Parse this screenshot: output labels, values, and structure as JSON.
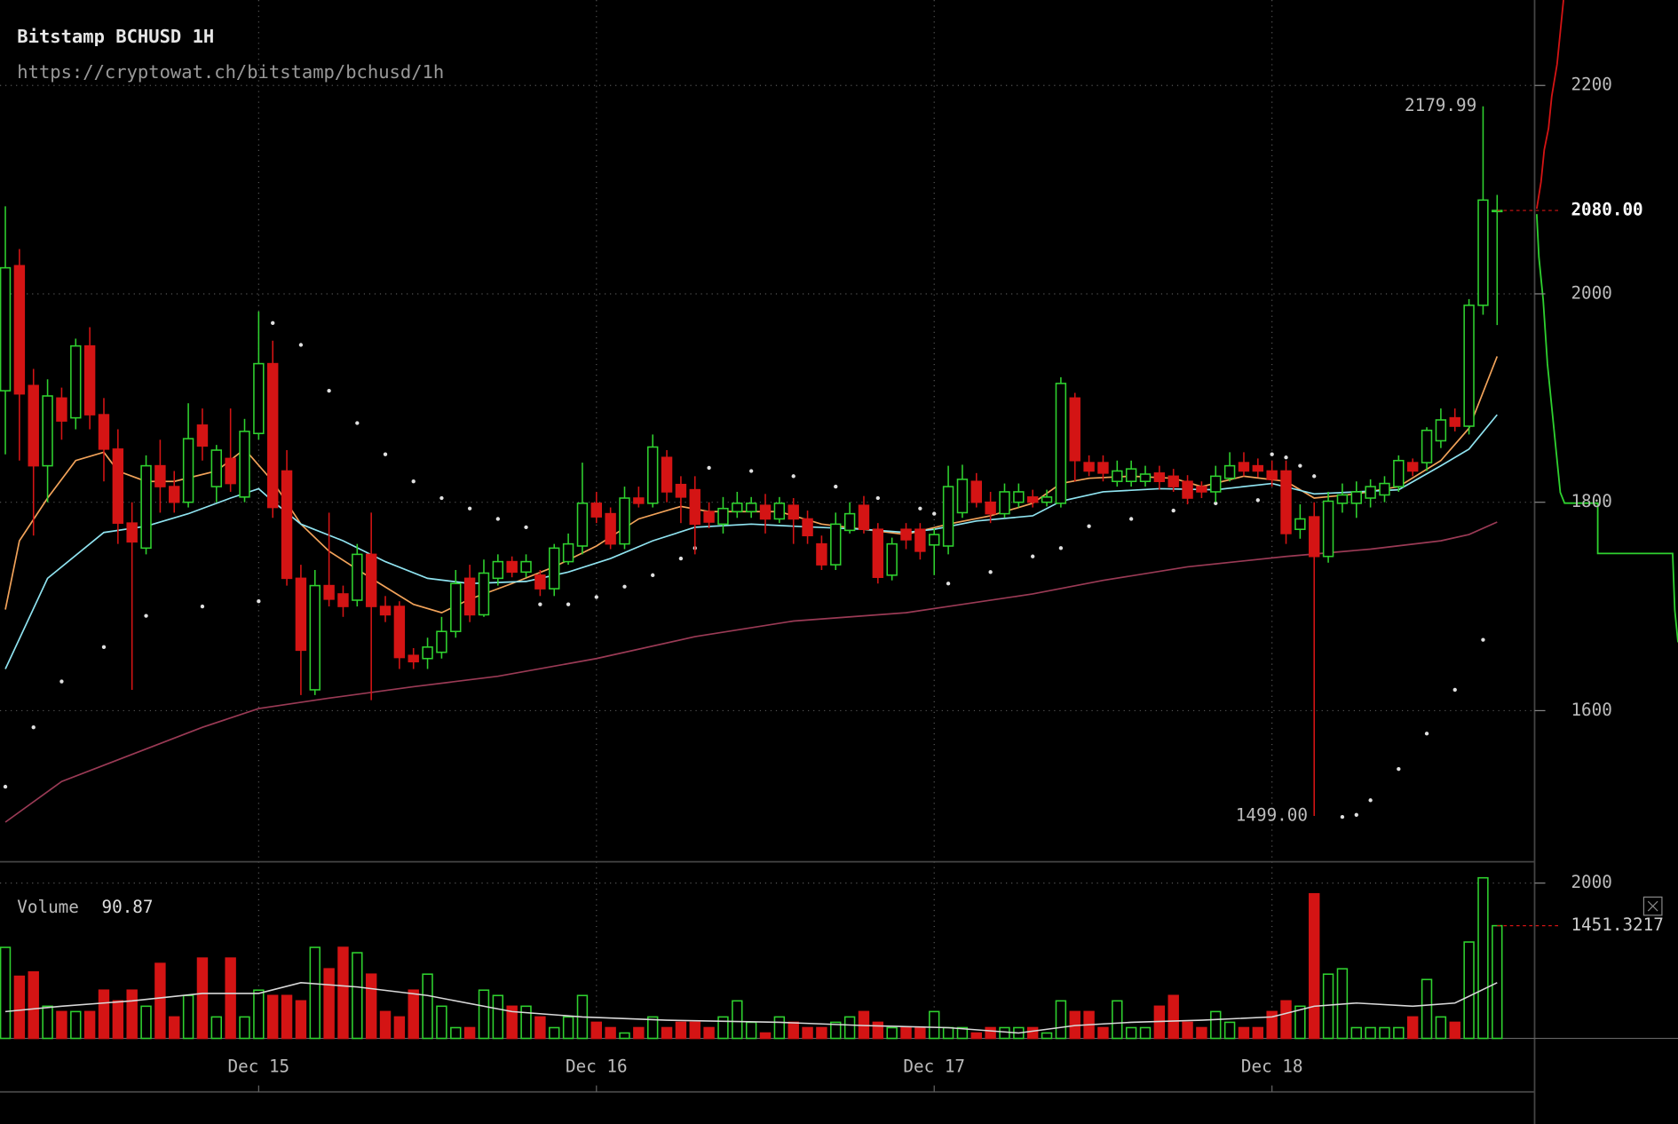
{
  "chart_data": {
    "type": "candlestick",
    "title": "Bitstamp BCHUSD 1H",
    "subtitle": "https://cryptowat.ch/bitstamp/bchusd/1h",
    "categories": [
      null,
      null,
      null,
      null,
      null,
      null,
      null,
      null,
      null,
      null,
      null,
      null,
      null,
      null,
      null,
      null,
      null,
      null,
      "Dec 15",
      null,
      null,
      null,
      null,
      null,
      null,
      null,
      null,
      null,
      null,
      null,
      null,
      null,
      null,
      null,
      null,
      null,
      null,
      null,
      null,
      null,
      null,
      null,
      "Dec 16",
      null,
      null,
      null,
      null,
      null,
      null,
      null,
      null,
      null,
      null,
      null,
      null,
      null,
      null,
      null,
      null,
      null,
      null,
      null,
      null,
      null,
      null,
      null,
      "Dec 17",
      null,
      null,
      null,
      null,
      null,
      null,
      null,
      null,
      null,
      null,
      null,
      null,
      null,
      null,
      null,
      null,
      null,
      null,
      null,
      null,
      null,
      null,
      null,
      "Dec 18",
      null,
      null,
      null,
      null,
      null,
      null,
      null,
      null,
      null,
      null,
      null,
      null,
      null,
      null,
      null,
      null
    ],
    "open": [
      1907,
      2027,
      1912,
      1835,
      1900,
      1881,
      1950,
      1884,
      1851,
      1780,
      1756,
      1835,
      1815,
      1800,
      1874,
      1815,
      1842,
      1805,
      1866,
      1933,
      1830,
      1727,
      1620,
      1720,
      1712,
      1706,
      1750,
      1700,
      1700,
      1653,
      1650,
      1656,
      1676,
      1727,
      1692,
      1727,
      1743,
      1733,
      1730,
      1717,
      1743,
      1758,
      1799,
      1789,
      1760,
      1804,
      1799,
      1843,
      1817,
      1812,
      1791,
      1779,
      1791,
      1791,
      1797,
      1784,
      1797,
      1784,
      1760,
      1740,
      1773,
      1797,
      1774,
      1730,
      1774,
      1774,
      1759,
      1758,
      1790,
      1820,
      1800,
      1789,
      1800,
      1805,
      1800,
      1799,
      1900,
      1838,
      1838,
      1820,
      1820,
      1820,
      1828,
      1825,
      1820,
      1815,
      1810,
      1823,
      1838,
      1835,
      1830,
      1830,
      1774,
      1786,
      1748,
      1799,
      1799,
      1804,
      1807,
      1815,
      1838,
      1838,
      1859,
      1881,
      1873,
      1989,
      2080
    ],
    "high": [
      2084,
      2043,
      1928,
      1918,
      1910,
      1957,
      1968,
      1900,
      1870,
      1800,
      1845,
      1860,
      1830,
      1895,
      1890,
      1855,
      1890,
      1880,
      1983,
      1955,
      1850,
      1740,
      1735,
      1790,
      1720,
      1760,
      1790,
      1710,
      1705,
      1660,
      1670,
      1690,
      1735,
      1740,
      1745,
      1750,
      1748,
      1750,
      1735,
      1760,
      1770,
      1838,
      1810,
      1795,
      1815,
      1815,
      1865,
      1850,
      1825,
      1825,
      1800,
      1805,
      1810,
      1805,
      1808,
      1805,
      1804,
      1792,
      1768,
      1790,
      1800,
      1806,
      1780,
      1766,
      1780,
      1780,
      1775,
      1835,
      1836,
      1828,
      1810,
      1818,
      1818,
      1812,
      1812,
      1920,
      1905,
      1845,
      1845,
      1840,
      1840,
      1835,
      1835,
      1832,
      1826,
      1820,
      1835,
      1848,
      1848,
      1842,
      1840,
      1840,
      1798,
      1800,
      1810,
      1818,
      1820,
      1822,
      1825,
      1845,
      1842,
      1872,
      1890,
      1890,
      1995,
      2179.99,
      2095
    ],
    "low": [
      1846,
      1840,
      1768,
      1800,
      1860,
      1870,
      1870,
      1820,
      1760,
      1620,
      1750,
      1790,
      1790,
      1795,
      1840,
      1800,
      1810,
      1800,
      1860,
      1785,
      1720,
      1615,
      1615,
      1700,
      1690,
      1700,
      1610,
      1685,
      1640,
      1640,
      1640,
      1650,
      1670,
      1685,
      1690,
      1720,
      1728,
      1728,
      1710,
      1710,
      1740,
      1750,
      1780,
      1755,
      1755,
      1795,
      1795,
      1800,
      1780,
      1750,
      1775,
      1770,
      1785,
      1785,
      1770,
      1780,
      1760,
      1760,
      1735,
      1735,
      1770,
      1770,
      1722,
      1725,
      1755,
      1745,
      1730,
      1750,
      1785,
      1795,
      1780,
      1785,
      1795,
      1795,
      1796,
      1795,
      1820,
      1825,
      1820,
      1815,
      1815,
      1815,
      1812,
      1810,
      1798,
      1804,
      1800,
      1820,
      1825,
      1824,
      1815,
      1760,
      1765,
      1499,
      1742,
      1790,
      1785,
      1795,
      1800,
      1810,
      1825,
      1830,
      1852,
      1868,
      1865,
      1980,
      1970
    ],
    "close": [
      2025,
      1904,
      1835,
      1902,
      1878,
      1950,
      1884,
      1851,
      1780,
      1762,
      1835,
      1815,
      1800,
      1861,
      1854,
      1850,
      1818,
      1868,
      1933,
      1795,
      1727,
      1658,
      1720,
      1707,
      1700,
      1750,
      1700,
      1692,
      1651,
      1647,
      1661,
      1676,
      1722,
      1692,
      1732,
      1743,
      1733,
      1743,
      1717,
      1756,
      1760,
      1799,
      1786,
      1760,
      1804,
      1799,
      1853,
      1810,
      1805,
      1779,
      1781,
      1794,
      1799,
      1799,
      1784,
      1799,
      1784,
      1768,
      1740,
      1779,
      1789,
      1774,
      1728,
      1760,
      1764,
      1753,
      1769,
      1815,
      1822,
      1800,
      1789,
      1810,
      1810,
      1800,
      1805,
      1914,
      1840,
      1830,
      1828,
      1830,
      1832,
      1827,
      1820,
      1815,
      1804,
      1810,
      1825,
      1835,
      1830,
      1830,
      1822,
      1770,
      1784,
      1748,
      1801,
      1807,
      1810,
      1815,
      1818,
      1840,
      1830,
      1869,
      1879,
      1873,
      1989,
      2090,
      2080
    ],
    "up_color": "#2fd12f",
    "down_color": "#d41414",
    "ylim": [
      1455,
      2282
    ],
    "yticks": [
      1600,
      1800,
      2000,
      2200
    ],
    "grid": true,
    "last_price": 2080,
    "last_price_label": "2080.00",
    "annotations": [
      {
        "value": 2179.99,
        "label": "2179.99"
      },
      {
        "value": 1499,
        "label": "1499.00"
      }
    ],
    "overlays": [
      {
        "color": "#f2a35a",
        "x": [
          0,
          1,
          3,
          5,
          7,
          8,
          10,
          12,
          15,
          17,
          19,
          21,
          23,
          26,
          29,
          31,
          33,
          36,
          39,
          42,
          45,
          48,
          50,
          55,
          58,
          61,
          64,
          67,
          70,
          73,
          75,
          77,
          80,
          83,
          85,
          88,
          91,
          93,
          96,
          99,
          102,
          104,
          106
        ],
        "values": [
          1697,
          1763,
          1804,
          1840,
          1848,
          1830,
          1820,
          1820,
          1830,
          1851,
          1820,
          1779,
          1753,
          1727,
          1702,
          1694,
          1707,
          1722,
          1738,
          1758,
          1784,
          1796,
          1791,
          1791,
          1779,
          1774,
          1769,
          1779,
          1787,
          1799,
          1818,
          1823,
          1825,
          1823,
          1815,
          1825,
          1820,
          1804,
          1808,
          1815,
          1840,
          1871,
          1940
        ]
      },
      {
        "color": "#8fe3f0",
        "x": [
          0,
          3,
          7,
          10,
          13,
          16,
          18,
          19,
          21,
          24,
          27,
          30,
          33,
          37,
          40,
          43,
          46,
          49,
          53,
          56,
          61,
          64,
          66,
          69,
          73,
          75,
          78,
          82,
          86,
          90,
          93,
          96,
          99,
          102,
          104,
          106
        ],
        "values": [
          1640,
          1727,
          1771,
          1777,
          1789,
          1804,
          1813,
          1801,
          1779,
          1763,
          1743,
          1727,
          1722,
          1724,
          1733,
          1746,
          1763,
          1776,
          1779,
          1777,
          1774,
          1771,
          1774,
          1782,
          1787,
          1801,
          1810,
          1813,
          1812,
          1818,
          1808,
          1810,
          1812,
          1835,
          1851,
          1884
        ]
      },
      {
        "color": "#9a3a55",
        "x": [
          0,
          4,
          9,
          14,
          18,
          23,
          29,
          35,
          42,
          49,
          56,
          64,
          67,
          73,
          78,
          84,
          91,
          97,
          102,
          104,
          106
        ],
        "values": [
          1493,
          1532,
          1558,
          1584,
          1602,
          1612,
          1623,
          1633,
          1650,
          1671,
          1686,
          1694,
          1700,
          1712,
          1725,
          1738,
          1748,
          1755,
          1763,
          1769,
          1781
        ]
      }
    ],
    "sar": {
      "color": "#e0e0e0",
      "x": [
        0,
        2,
        4,
        7,
        10,
        14,
        18,
        19,
        21,
        23,
        25,
        27,
        29,
        31,
        33,
        35,
        37,
        38,
        40,
        42,
        44,
        46,
        48,
        49,
        50,
        53,
        56,
        59,
        62,
        65,
        66,
        67,
        70,
        73,
        75,
        77,
        80,
        83,
        86,
        89,
        90,
        91,
        92,
        93,
        95,
        96,
        97,
        99,
        101,
        103,
        105
      ],
      "values": [
        1527,
        1584,
        1628,
        1661,
        1691,
        1700,
        1705,
        1972,
        1951,
        1907,
        1876,
        1846,
        1820,
        1804,
        1794,
        1784,
        1776,
        1702,
        1702,
        1709,
        1719,
        1730,
        1746,
        1756,
        1833,
        1830,
        1825,
        1815,
        1804,
        1794,
        1789,
        1722,
        1733,
        1748,
        1756,
        1777,
        1784,
        1792,
        1799,
        1802,
        1846,
        1843,
        1835,
        1825,
        1498,
        1500,
        1514,
        1544,
        1578,
        1620,
        1668
      ]
    },
    "volume": {
      "title": "Volume",
      "readout": 90.87,
      "values": [
        1172,
        800,
        855,
        414,
        345,
        345,
        345,
        621,
        483,
        621,
        414,
        965,
        276,
        552,
        1034,
        276,
        1034,
        276,
        621,
        552,
        552,
        483,
        1172,
        896,
        1172,
        1103,
        827,
        345,
        276,
        621,
        827,
        414,
        138,
        138,
        621,
        552,
        414,
        414,
        276,
        138,
        276,
        552,
        207,
        138,
        69,
        138,
        276,
        138,
        207,
        207,
        138,
        276,
        483,
        207,
        69,
        276,
        207,
        138,
        138,
        207,
        276,
        345,
        207,
        138,
        138,
        138,
        345,
        138,
        138,
        69,
        138,
        138,
        138,
        138,
        69,
        483,
        345,
        345,
        138,
        483,
        138,
        138,
        414,
        552,
        207,
        138,
        345,
        207,
        138,
        138,
        345,
        483,
        414,
        1862,
        827,
        896,
        138,
        138,
        138,
        138,
        276,
        758,
        276,
        207,
        1241,
        2068,
        1451.3217
      ],
      "last_label": "1451.3217",
      "ylim": [
        0,
        2275
      ],
      "yticks": [
        2000
      ],
      "ma": {
        "color": "#d8d8d8",
        "x": [
          0,
          4,
          9,
          14,
          18,
          21,
          25,
          30,
          36,
          41,
          47,
          55,
          61,
          67,
          72,
          76,
          80,
          85,
          90,
          93,
          96,
          100,
          103,
          106
        ],
        "values": [
          345,
          414,
          483,
          579,
          579,
          717,
          662,
          552,
          345,
          276,
          234,
          207,
          165,
          138,
          69,
          165,
          207,
          234,
          276,
          414,
          455,
          414,
          455,
          717
        ]
      }
    }
  }
}
